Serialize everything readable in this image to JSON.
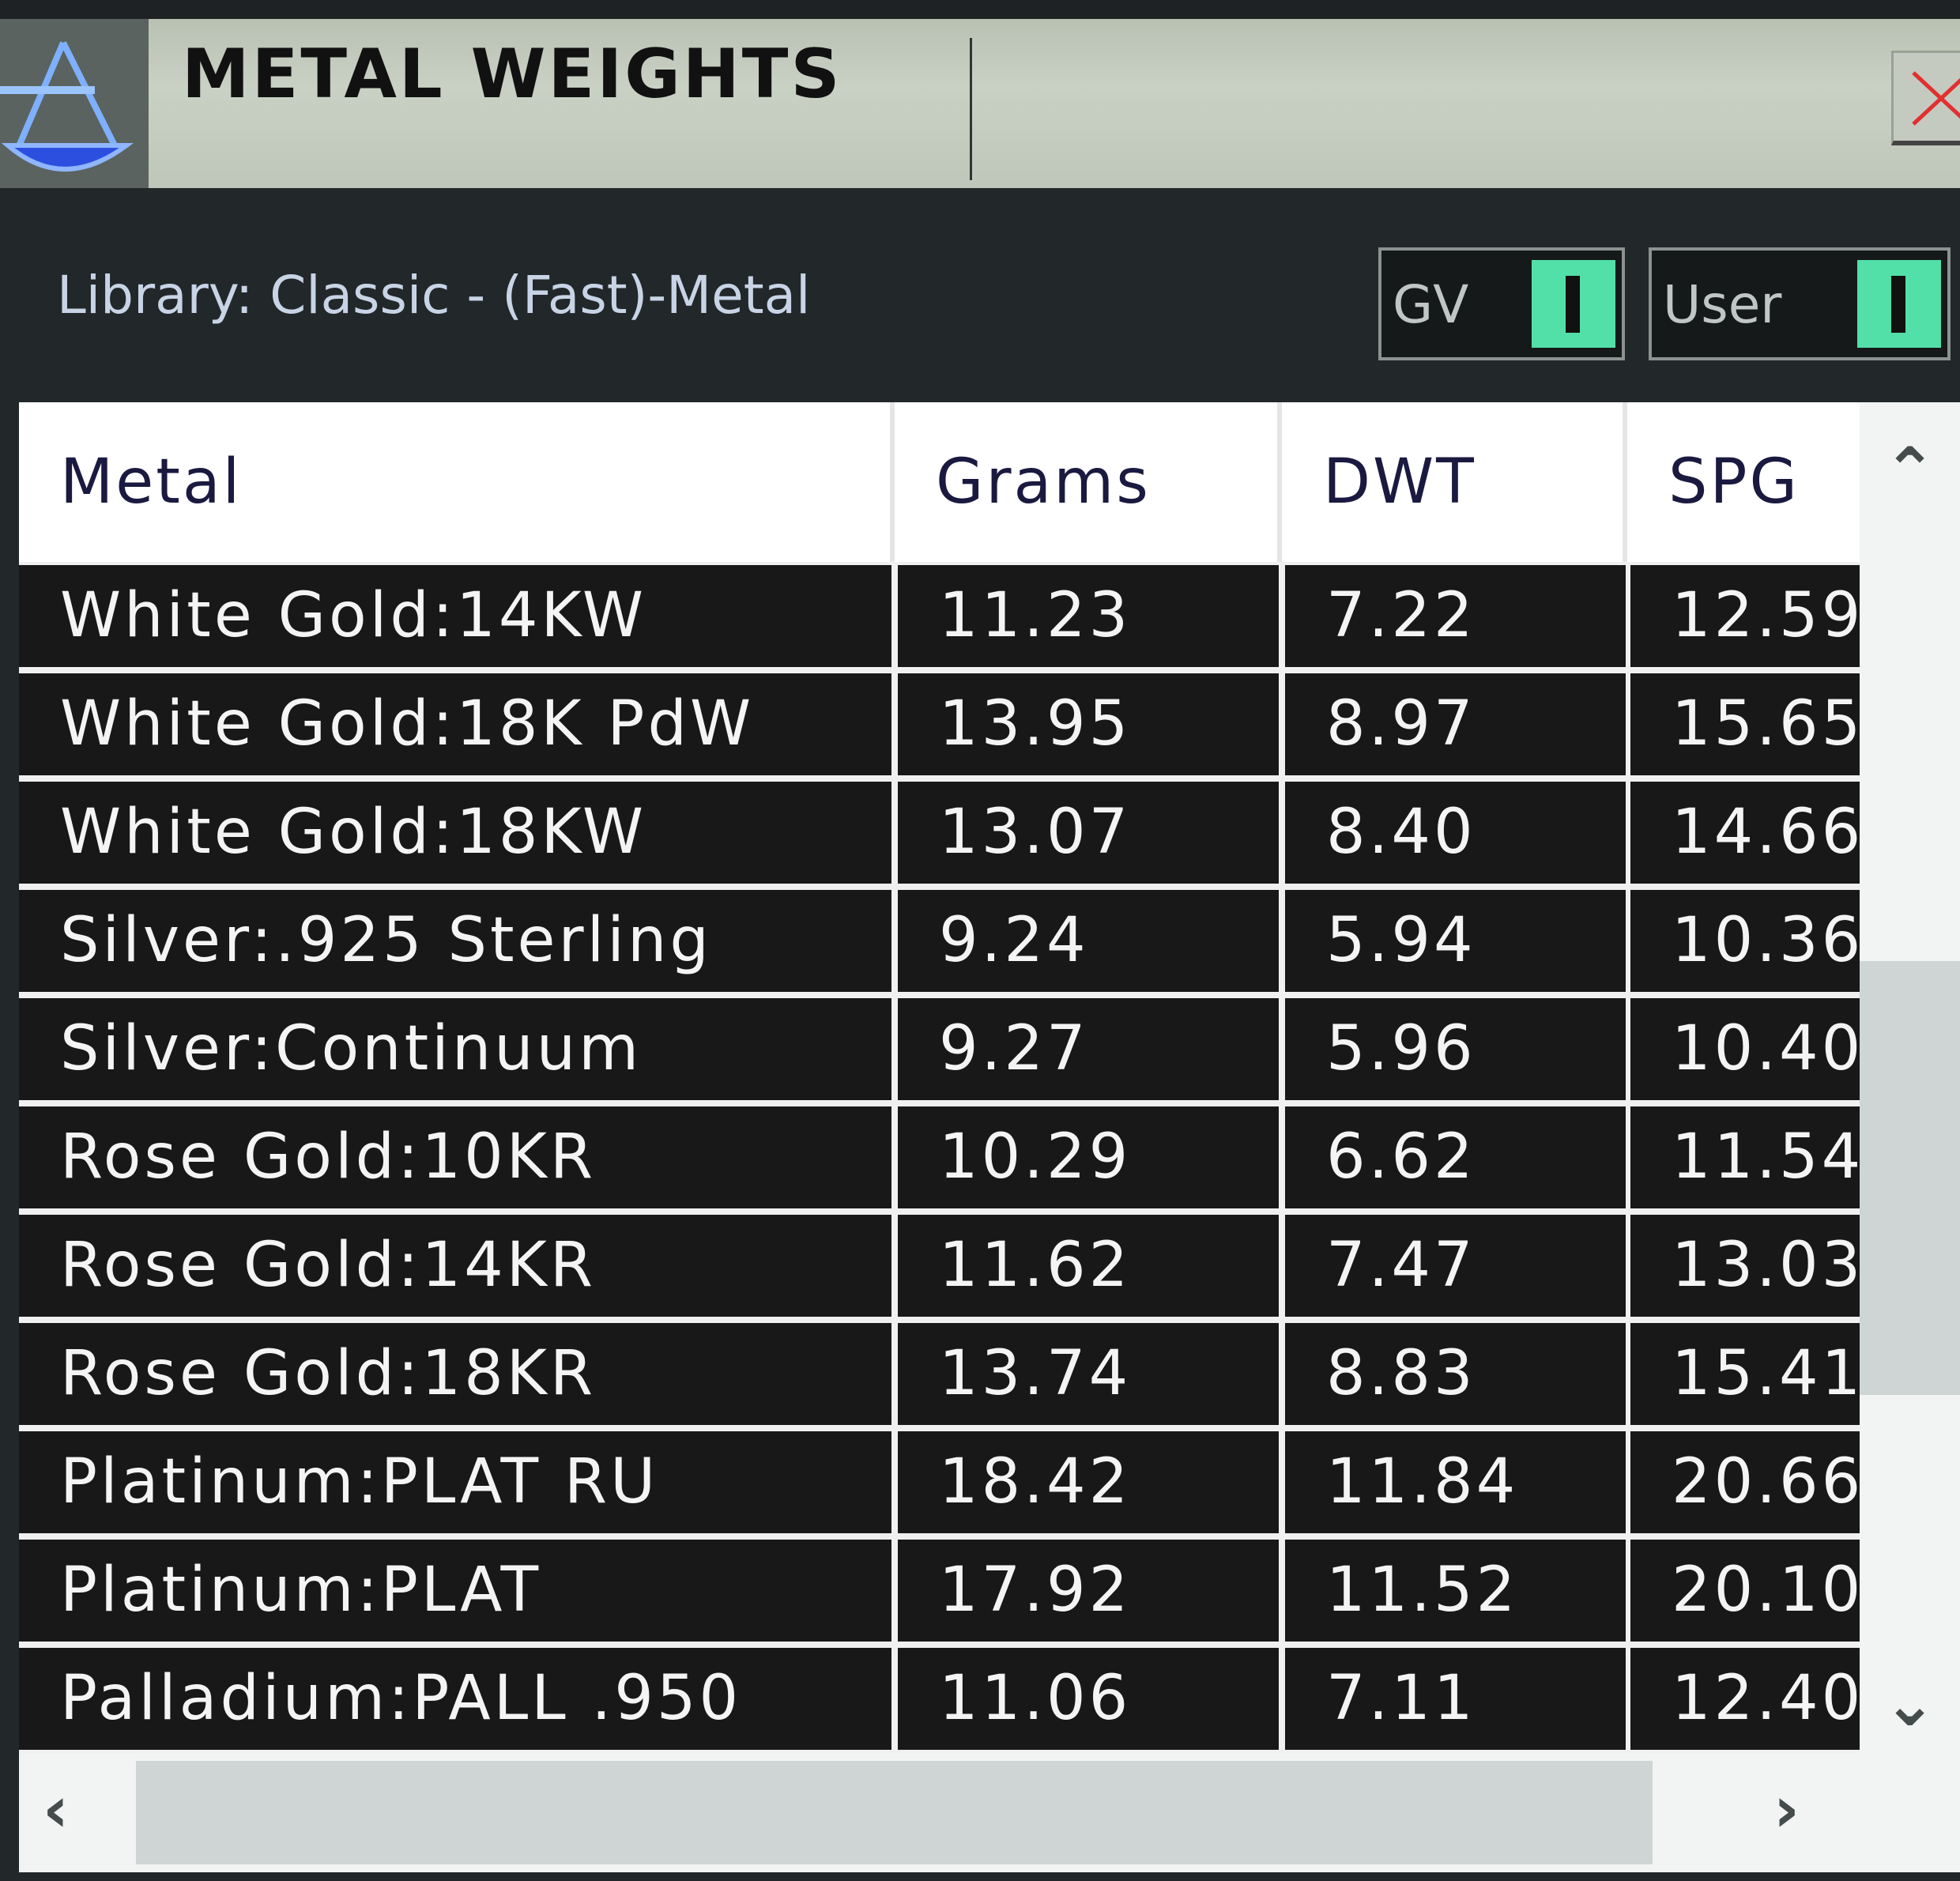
{
  "window": {
    "title": "METAL WEIGHTS",
    "icon": "scale-icon",
    "close_icon": "close-icon"
  },
  "toolbar": {
    "library_label": "Library: Classic - (Fast)-Metal",
    "toggles": [
      {
        "label": "GV",
        "state": "on",
        "color": "#52e0a8"
      },
      {
        "label": "User",
        "state": "on",
        "color": "#52e0a8"
      }
    ]
  },
  "table": {
    "columns": [
      "Metal",
      "Grams",
      "DWT",
      "SPG"
    ],
    "rows": [
      [
        "White Gold:14KW",
        "11.23",
        "7.22",
        "12.59"
      ],
      [
        "White Gold:18K PdW",
        "13.95",
        "8.97",
        "15.65"
      ],
      [
        "White Gold:18KW",
        "13.07",
        "8.40",
        "14.66"
      ],
      [
        "Silver:.925 Sterling",
        "9.24",
        "5.94",
        "10.36"
      ],
      [
        "Silver:Continuum",
        "9.27",
        "5.96",
        "10.40"
      ],
      [
        "Rose Gold:10KR",
        "10.29",
        "6.62",
        "11.54"
      ],
      [
        "Rose Gold:14KR",
        "11.62",
        "7.47",
        "13.03"
      ],
      [
        "Rose Gold:18KR",
        "13.74",
        "8.83",
        "15.41"
      ],
      [
        "Platinum:PLAT RU",
        "18.42",
        "11.84",
        "20.66"
      ],
      [
        "Platinum:PLAT",
        "17.92",
        "11.52",
        "20.10"
      ],
      [
        "Palladium:PALL .950",
        "11.06",
        "7.11",
        "12.40"
      ]
    ]
  }
}
